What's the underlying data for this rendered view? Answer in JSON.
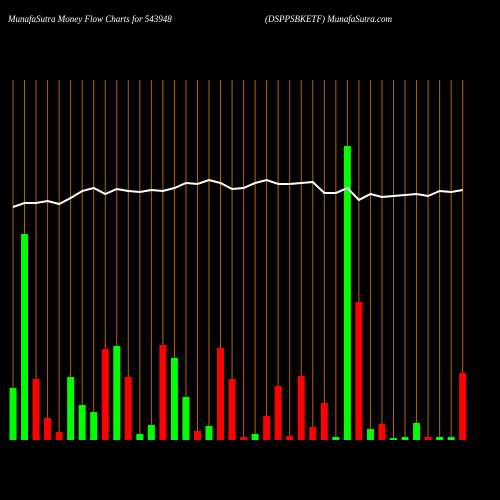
{
  "chart_data": {
    "type": "bar",
    "title": "MunafaSutra  Money Flow  Charts for 543948",
    "subtitle": "(DSPPSBKETF) MunafaSutra.com",
    "categories": [
      null,
      null,
      null,
      null,
      null,
      null,
      null,
      null,
      null,
      null,
      null,
      null,
      null,
      null,
      null,
      null,
      null,
      null,
      null,
      null,
      null,
      null,
      null,
      null,
      null,
      null,
      null,
      null,
      null,
      null,
      null,
      null,
      null,
      null,
      null,
      null,
      null,
      null,
      null,
      null
    ],
    "values": [
      52,
      206,
      61,
      22,
      8,
      63,
      35,
      28,
      91,
      94,
      63,
      6,
      15,
      95,
      82,
      43,
      9,
      14,
      92,
      61,
      3,
      6,
      24,
      54,
      4,
      64,
      13,
      37,
      3,
      294,
      138,
      11,
      16,
      2,
      3,
      17,
      3,
      3,
      3,
      67
    ],
    "colors": [
      "#00ff00",
      "#00ff00",
      "#ff0000",
      "#ff0000",
      "#ff0000",
      "#00ff00",
      "#00ff00",
      "#00ff00",
      "#ff0000",
      "#00ff00",
      "#ff0000",
      "#00ff00",
      "#00ff00",
      "#ff0000",
      "#00ff00",
      "#00ff00",
      "#ff0000",
      "#00ff00",
      "#ff0000",
      "#ff0000",
      "#ff0000",
      "#00ff00",
      "#ff0000",
      "#ff0000",
      "#ff0000",
      "#ff0000",
      "#ff0000",
      "#ff0000",
      "#00ff00",
      "#00ff00",
      "#ff0000",
      "#00ff00",
      "#ff0000",
      "#00ff00",
      "#00ff00",
      "#00ff00",
      "#ff0000",
      "#00ff00",
      "#00ff00",
      "#ff0000"
    ],
    "line_values": [
      233,
      237,
      237,
      239,
      236,
      242,
      249,
      252,
      246,
      251,
      249,
      248,
      250,
      249,
      252,
      257,
      256,
      260,
      257,
      251,
      252,
      257,
      260,
      256,
      256,
      257,
      258,
      247,
      247,
      252,
      240,
      246,
      243,
      244,
      245,
      246,
      244,
      249,
      248,
      250
    ],
    "line_color": "#ffffff",
    "gridline_color": "#b8650a",
    "ylim": [
      0,
      360
    ]
  }
}
